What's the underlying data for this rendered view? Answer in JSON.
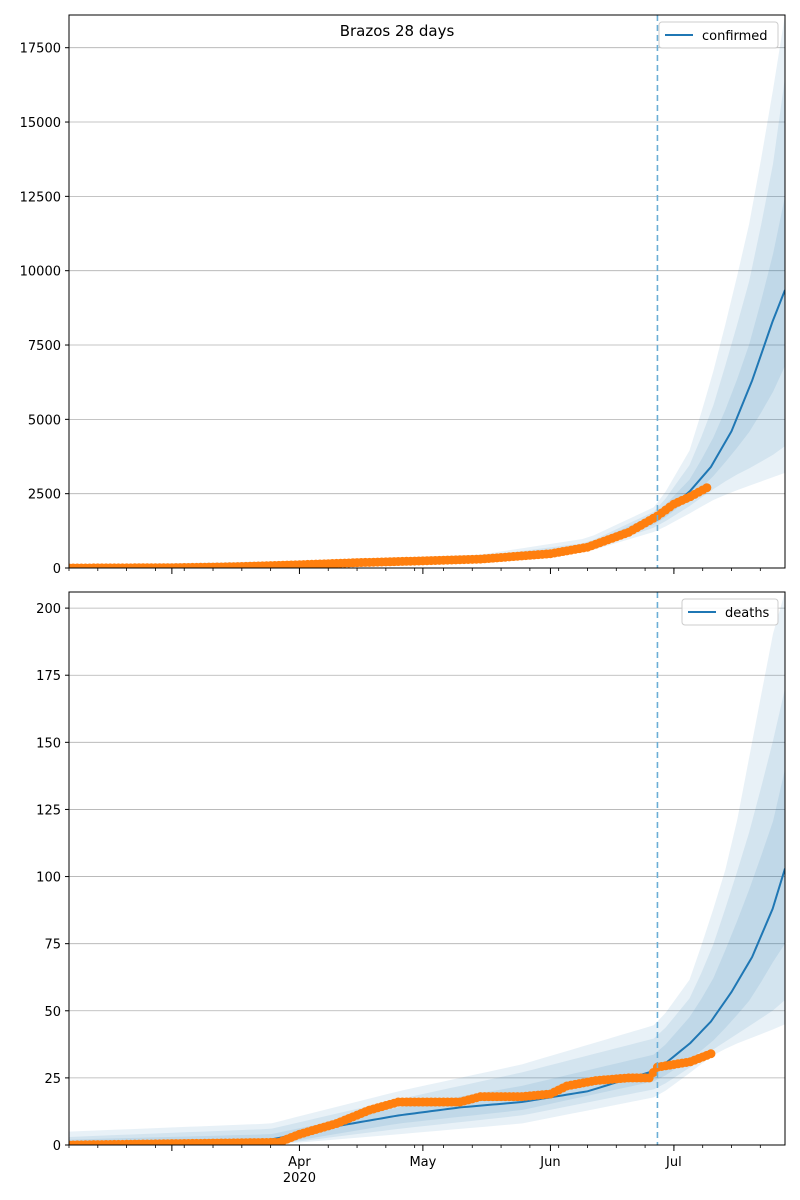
{
  "figure": {
    "title": "Brazos 28 days"
  },
  "chart_data": [
    {
      "type": "line",
      "title": "Brazos 28 days",
      "xlabel": "",
      "ylabel": "",
      "x_ticks": [
        "Apr",
        "May",
        "Jun",
        "Jul"
      ],
      "x_tick_year": "2020",
      "x_range": [
        "2020-02-05",
        "2020-07-28"
      ],
      "ylim": [
        0,
        18600
      ],
      "y_ticks": [
        0,
        2500,
        5000,
        7500,
        10000,
        12500,
        15000,
        17500
      ],
      "y_tick_labels": [
        "0",
        "2500",
        "5000",
        "7500",
        "10000",
        "12500",
        "15000",
        "17500"
      ],
      "grid": "y",
      "legend_placement": "top-right",
      "forecast_start": "2020-06-27",
      "series": [
        {
          "name": "confirmed",
          "color": "#1f77b4",
          "x": [
            "2020-02-05",
            "2020-03-01",
            "2020-03-15",
            "2020-04-01",
            "2020-04-15",
            "2020-05-01",
            "2020-05-15",
            "2020-06-01",
            "2020-06-10",
            "2020-06-20",
            "2020-06-27",
            "2020-07-01",
            "2020-07-05",
            "2020-07-10",
            "2020-07-15",
            "2020-07-20",
            "2020-07-25",
            "2020-07-28"
          ],
          "values": [
            0,
            10,
            40,
            110,
            170,
            230,
            300,
            470,
            700,
            1100,
            1700,
            2100,
            2600,
            3400,
            4600,
            6300,
            8300,
            9350
          ]
        }
      ],
      "bands": [
        {
          "x": [
            "2020-02-05",
            "2020-04-01",
            "2020-05-15",
            "2020-06-10",
            "2020-06-27",
            "2020-07-05",
            "2020-07-10",
            "2020-07-15",
            "2020-07-20",
            "2020-07-25",
            "2020-07-28"
          ],
          "low": [
            0,
            80,
            200,
            550,
            1250,
            1850,
            2250,
            2550,
            2800,
            3050,
            3200
          ],
          "high": [
            100,
            240,
            450,
            1000,
            2100,
            4000,
            6300,
            9000,
            12000,
            16000,
            19000
          ]
        },
        {
          "x": [
            "2020-02-05",
            "2020-04-01",
            "2020-05-15",
            "2020-06-10",
            "2020-06-27",
            "2020-07-05",
            "2020-07-10",
            "2020-07-15",
            "2020-07-20",
            "2020-07-25",
            "2020-07-28"
          ],
          "low": [
            0,
            90,
            230,
            600,
            1400,
            2100,
            2600,
            3050,
            3400,
            3800,
            4100
          ],
          "high": [
            60,
            170,
            400,
            850,
            1950,
            3500,
            5200,
            7500,
            10000,
            13500,
            16500
          ]
        },
        {
          "x": [
            "2020-02-05",
            "2020-04-01",
            "2020-05-15",
            "2020-06-10",
            "2020-06-27",
            "2020-07-05",
            "2020-07-10",
            "2020-07-15",
            "2020-07-20",
            "2020-07-25",
            "2020-07-28"
          ],
          "low": [
            0,
            100,
            260,
            640,
            1500,
            2350,
            3000,
            3800,
            4700,
            5900,
            6800
          ],
          "high": [
            30,
            140,
            340,
            760,
            1850,
            3000,
            4200,
            5800,
            7800,
            10500,
            12500
          ]
        }
      ],
      "observed": {
        "color": "#ff7f0e",
        "x": [
          "2020-02-05",
          "2020-03-01",
          "2020-03-15",
          "2020-04-01",
          "2020-04-15",
          "2020-05-01",
          "2020-05-15",
          "2020-06-01",
          "2020-06-10",
          "2020-06-20",
          "2020-06-27",
          "2020-07-01",
          "2020-07-05",
          "2020-07-09"
        ],
        "values": [
          0,
          10,
          40,
          110,
          180,
          240,
          300,
          480,
          700,
          1200,
          1750,
          2150,
          2400,
          2700
        ]
      }
    },
    {
      "type": "line",
      "title": "",
      "xlabel": "",
      "ylabel": "",
      "x_ticks": [
        "Apr",
        "May",
        "Jun",
        "Jul"
      ],
      "x_tick_year": "2020",
      "x_range": [
        "2020-02-05",
        "2020-07-28"
      ],
      "ylim": [
        0,
        206
      ],
      "y_ticks": [
        0,
        25,
        50,
        75,
        100,
        125,
        150,
        175,
        200
      ],
      "y_tick_labels": [
        "0",
        "25",
        "50",
        "75",
        "100",
        "125",
        "150",
        "175",
        "200"
      ],
      "grid": "y",
      "legend_placement": "top-right",
      "forecast_start": "2020-06-27",
      "series": [
        {
          "name": "deaths",
          "color": "#1f77b4",
          "x": [
            "2020-02-05",
            "2020-03-10",
            "2020-03-25",
            "2020-04-10",
            "2020-04-25",
            "2020-05-10",
            "2020-05-25",
            "2020-06-10",
            "2020-06-27",
            "2020-07-05",
            "2020-07-10",
            "2020-07-15",
            "2020-07-20",
            "2020-07-25",
            "2020-07-28"
          ],
          "values": [
            0,
            0,
            2,
            7,
            11,
            14,
            16,
            20,
            28,
            38,
            46,
            57,
            70,
            88,
            103
          ]
        }
      ],
      "bands": [
        {
          "x": [
            "2020-02-05",
            "2020-03-25",
            "2020-04-25",
            "2020-05-25",
            "2020-06-27",
            "2020-07-05",
            "2020-07-10",
            "2020-07-15",
            "2020-07-20",
            "2020-07-25",
            "2020-07-28"
          ],
          "low": [
            0,
            0,
            4,
            8,
            18,
            27,
            33,
            37,
            40,
            43,
            45
          ],
          "high": [
            5,
            8,
            20,
            30,
            45,
            62,
            85,
            110,
            150,
            190,
            206
          ]
        },
        {
          "x": [
            "2020-02-05",
            "2020-03-25",
            "2020-04-25",
            "2020-05-25",
            "2020-06-27",
            "2020-07-05",
            "2020-07-10",
            "2020-07-15",
            "2020-07-20",
            "2020-07-25",
            "2020-07-28"
          ],
          "low": [
            0,
            0,
            6,
            11,
            21,
            29,
            35,
            40,
            45,
            50,
            54
          ],
          "high": [
            3,
            6,
            17,
            27,
            40,
            55,
            72,
            95,
            120,
            150,
            170
          ]
        },
        {
          "x": [
            "2020-02-05",
            "2020-03-25",
            "2020-04-25",
            "2020-05-25",
            "2020-06-27",
            "2020-07-05",
            "2020-07-10",
            "2020-07-15",
            "2020-07-20",
            "2020-07-25",
            "2020-07-28"
          ],
          "low": [
            0,
            0,
            8,
            13,
            24,
            32,
            38,
            46,
            55,
            68,
            75
          ],
          "high": [
            2,
            4,
            14,
            22,
            34,
            48,
            60,
            78,
            98,
            120,
            140
          ]
        }
      ],
      "observed": {
        "color": "#ff7f0e",
        "x": [
          "2020-02-05",
          "2020-03-27",
          "2020-04-01",
          "2020-04-10",
          "2020-04-18",
          "2020-04-25",
          "2020-05-10",
          "2020-05-15",
          "2020-05-25",
          "2020-06-01",
          "2020-06-05",
          "2020-06-12",
          "2020-06-20",
          "2020-06-25",
          "2020-06-27",
          "2020-07-05",
          "2020-07-10"
        ],
        "values": [
          0,
          1,
          4,
          8,
          13,
          16,
          16,
          18,
          18,
          19,
          22,
          24,
          25,
          25,
          29,
          31,
          34
        ]
      }
    }
  ]
}
